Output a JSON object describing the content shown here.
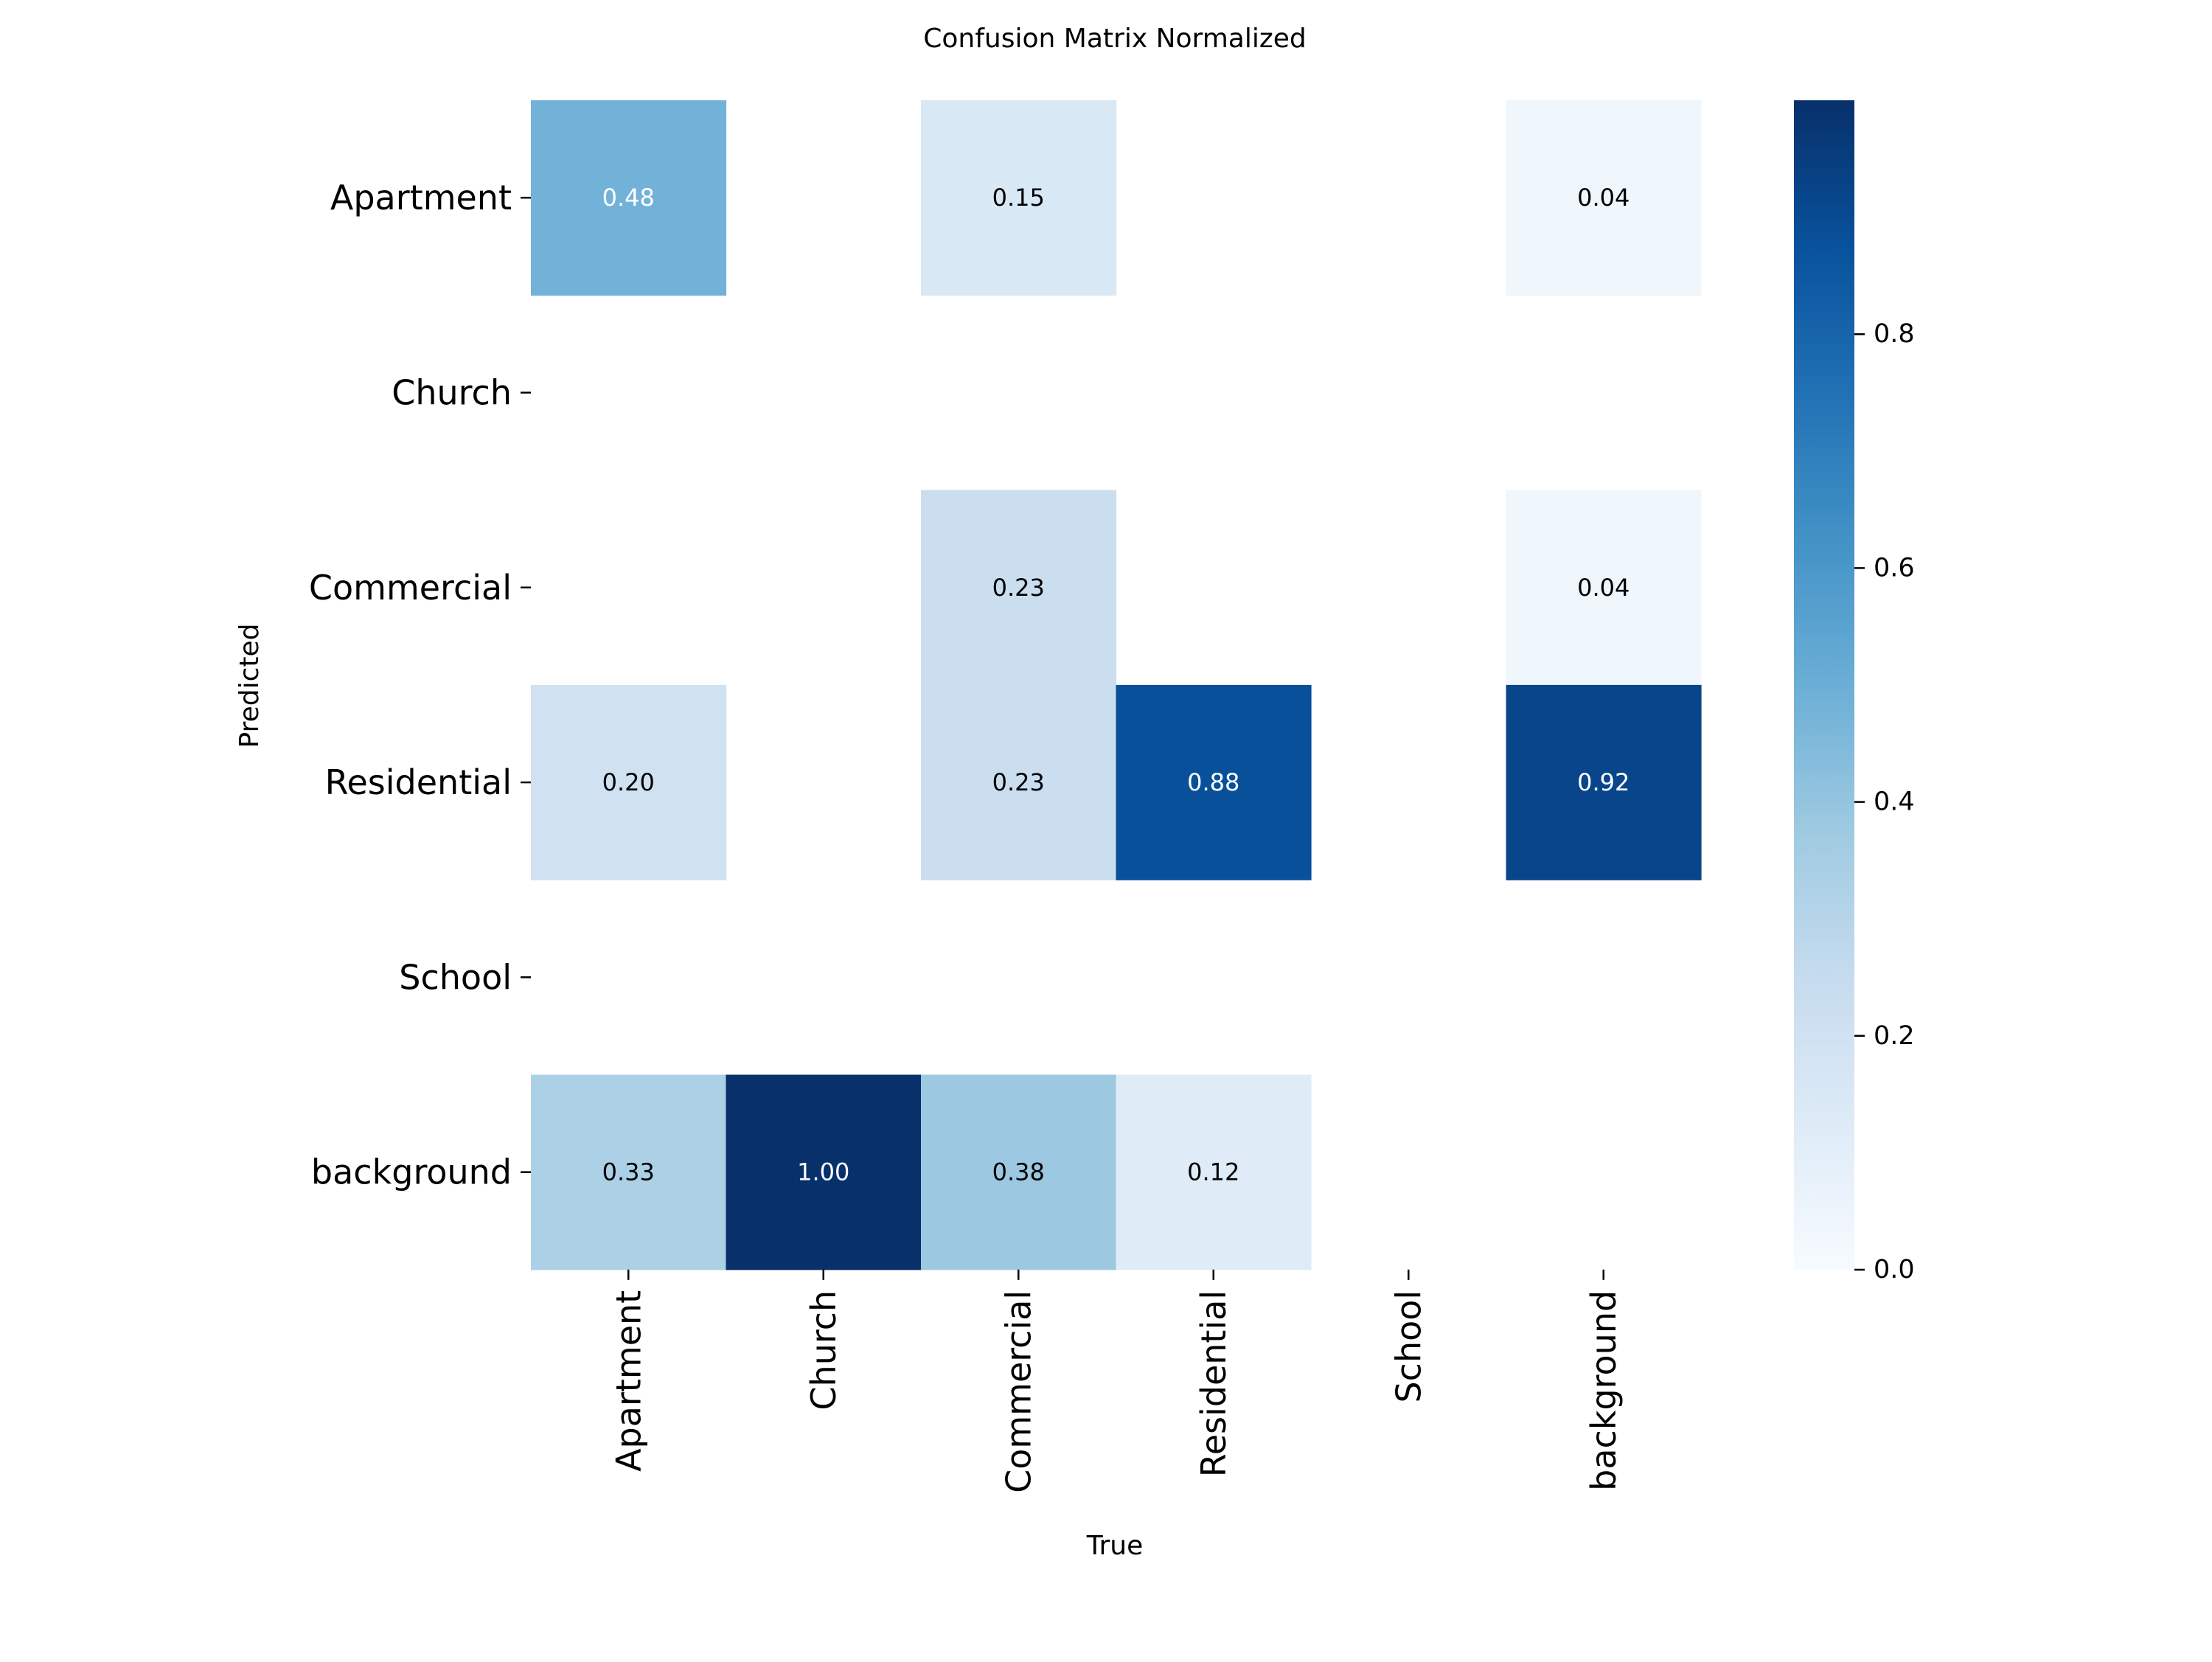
{
  "chart_data": {
    "type": "heatmap",
    "title": "Confusion Matrix Normalized",
    "xlabel": "True",
    "ylabel": "Predicted",
    "x_categories": [
      "Apartment",
      "Church",
      "Commercial",
      "Residential",
      "School",
      "background"
    ],
    "y_categories": [
      "Apartment",
      "Church",
      "Commercial",
      "Residential",
      "School",
      "background"
    ],
    "values": [
      [
        0.48,
        null,
        0.15,
        null,
        null,
        0.04
      ],
      [
        null,
        null,
        null,
        null,
        null,
        null
      ],
      [
        null,
        null,
        0.23,
        null,
        null,
        0.04
      ],
      [
        0.2,
        null,
        0.23,
        0.88,
        null,
        0.92
      ],
      [
        null,
        null,
        null,
        null,
        null,
        null
      ],
      [
        0.33,
        1.0,
        0.38,
        0.12,
        null,
        null
      ]
    ],
    "colormap": "Blues",
    "colorbar": {
      "range": [
        0.0,
        1.0
      ],
      "ticks": [
        0.0,
        0.2,
        0.4,
        0.6,
        0.8
      ],
      "tick_labels": [
        "0.0",
        "0.2",
        "0.4",
        "0.6",
        "0.8"
      ]
    },
    "grid": false,
    "legend": "colorbar-right"
  }
}
